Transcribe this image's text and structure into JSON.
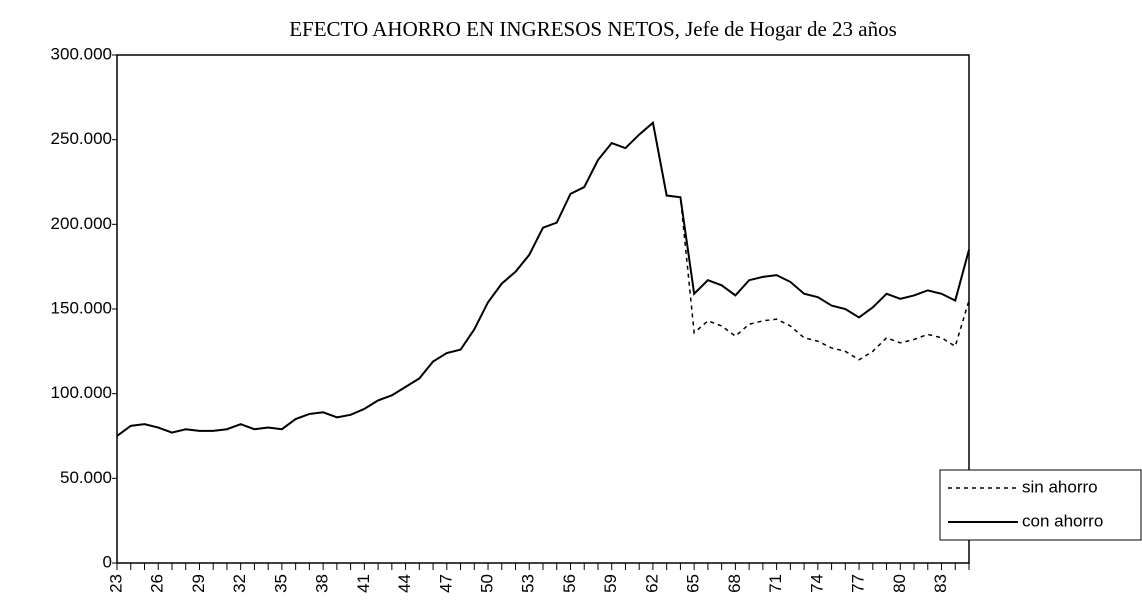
{
  "chart_data": {
    "type": "line",
    "title": "EFECTO AHORRO EN INGRESOS NETOS, Jefe de Hogar de 23 años",
    "categories": [
      "23",
      null,
      null,
      "26",
      null,
      null,
      "29",
      null,
      null,
      "32",
      null,
      null,
      "35",
      null,
      null,
      "38",
      null,
      null,
      "41",
      null,
      null,
      "44",
      null,
      null,
      "47",
      null,
      null,
      "50",
      null,
      null,
      "53",
      null,
      null,
      "56",
      null,
      null,
      "59",
      null,
      null,
      "62",
      null,
      null,
      "65",
      null,
      null,
      "68",
      null,
      null,
      "71",
      null,
      null,
      "74",
      null,
      null,
      "77",
      null,
      null,
      "80",
      null,
      null,
      "83",
      null,
      null
    ],
    "series": [
      {
        "name": "sin ahorro",
        "color": "#000000",
        "dash": true,
        "values": [
          75000,
          81000,
          82000,
          80000,
          77000,
          79000,
          78000,
          78000,
          79000,
          82000,
          79000,
          80000,
          79000,
          85000,
          88000,
          89000,
          86000,
          87500,
          91000,
          96000,
          99000,
          104000,
          109000,
          119000,
          124000,
          126000,
          138000,
          154000,
          165000,
          172000,
          182000,
          198000,
          201000,
          218000,
          222000,
          238000,
          248000,
          245000,
          253000,
          260000,
          217000,
          216000,
          136000,
          143000,
          140000,
          134000,
          141000,
          143000,
          144000,
          140000,
          133000,
          131000,
          127000,
          125000,
          120000,
          125000,
          133000,
          130000,
          132000,
          135000,
          133000,
          128000,
          155000
        ]
      },
      {
        "name": "con ahorro",
        "color": "#000000",
        "dash": false,
        "values": [
          75000,
          81000,
          82000,
          80000,
          77000,
          79000,
          78000,
          78000,
          79000,
          82000,
          79000,
          80000,
          79000,
          85000,
          88000,
          89000,
          86000,
          87500,
          91000,
          96000,
          99000,
          104000,
          109000,
          119000,
          124000,
          126000,
          138000,
          154000,
          165000,
          172000,
          182000,
          198000,
          201000,
          218000,
          222000,
          238000,
          248000,
          245000,
          253000,
          260000,
          217000,
          216000,
          159000,
          167000,
          164000,
          158000,
          167000,
          169000,
          170000,
          166000,
          159000,
          157000,
          152000,
          150000,
          145000,
          151000,
          159000,
          156000,
          158000,
          161000,
          159000,
          155000,
          185000
        ]
      }
    ],
    "ylim": [
      0,
      300000
    ],
    "yticks": [
      {
        "value": 0,
        "label": "0"
      },
      {
        "value": 50000,
        "label": "50.000"
      },
      {
        "value": 100000,
        "label": "100.000"
      },
      {
        "value": 150000,
        "label": "150.000"
      },
      {
        "value": 200000,
        "label": "200.000"
      },
      {
        "value": 250000,
        "label": "250.000"
      },
      {
        "value": 300000,
        "label": "300.000"
      }
    ],
    "legend_position": "lower right"
  }
}
